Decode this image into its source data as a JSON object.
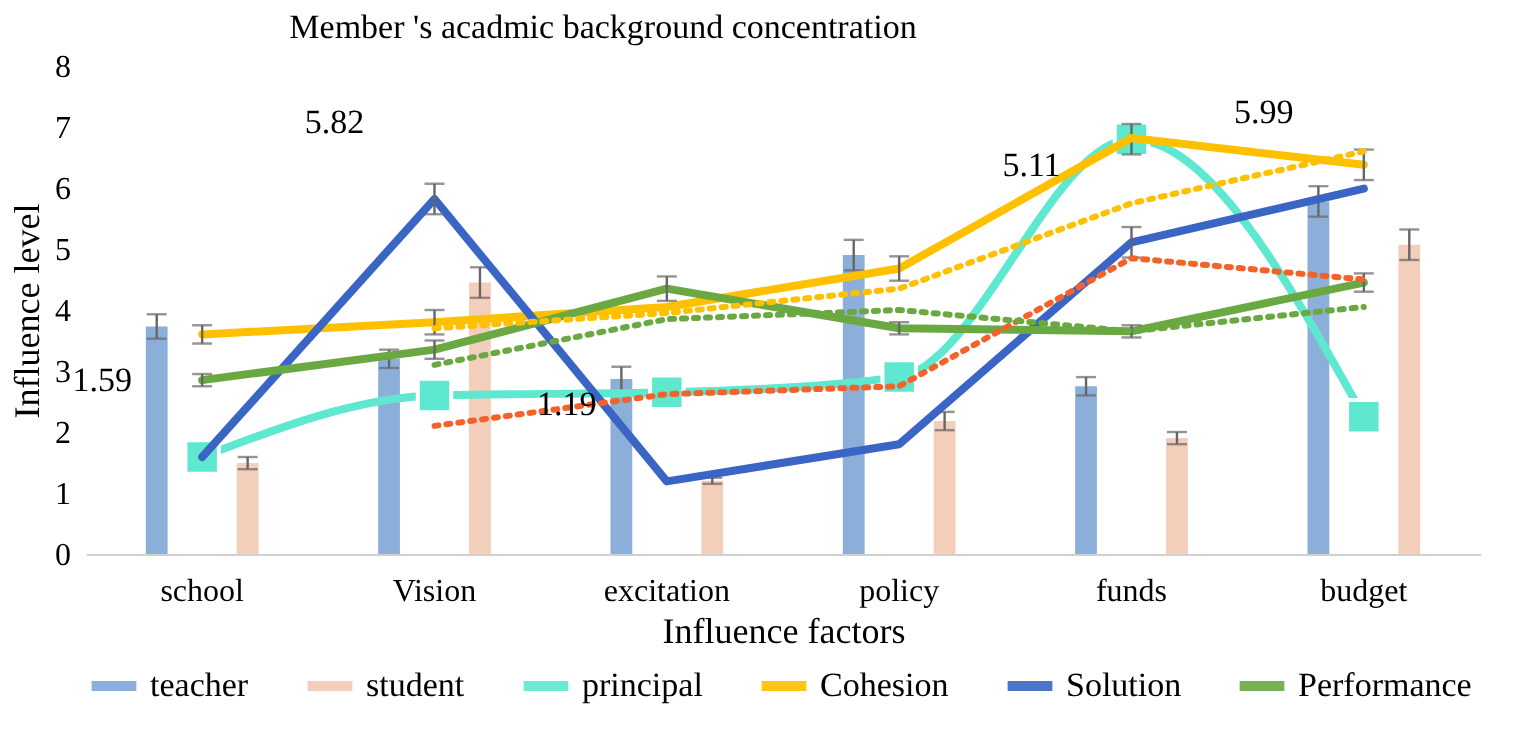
{
  "chart_data": {
    "type": "bar",
    "title": "Member 's acadmic background concentration",
    "xlabel": "Influence factors",
    "ylabel": "Influence level",
    "categories": [
      "school",
      "Vision",
      "excitation",
      "policy",
      "funds",
      "budget"
    ],
    "ylim": [
      0,
      8
    ],
    "yticks": [
      0,
      1,
      2,
      3,
      4,
      5,
      6,
      7,
      8
    ],
    "legend": "bottom",
    "series": [
      {
        "name": "teacher",
        "color": "#7fa6d6",
        "values": [
          3.73,
          3.2,
          2.87,
          4.9,
          2.75,
          5.78
        ],
        "errors": [
          0.2,
          0.15,
          0.2,
          0.25,
          0.15,
          0.25
        ]
      },
      {
        "name": "student",
        "color": "#f2c9b4",
        "values": [
          1.49,
          4.45,
          1.2,
          2.18,
          1.9,
          5.07
        ],
        "errors": [
          0.1,
          0.25,
          0.05,
          0.15,
          0.1,
          0.25
        ]
      },
      {
        "name": "principal",
        "type": "line",
        "color": "#5ee8d0",
        "marker": "square",
        "values": [
          1.59,
          2.6,
          2.65,
          2.9,
          6.8,
          2.25
        ],
        "errors": [
          null,
          null,
          null,
          null,
          0.25,
          null
        ]
      },
      {
        "name": "Cohesion",
        "type": "line",
        "color": "#ffc000",
        "values": [
          3.6,
          3.8,
          4.05,
          4.68,
          6.82,
          6.38
        ],
        "errors": [
          0.15,
          0.2,
          null,
          0.2,
          null,
          0.25
        ]
      },
      {
        "name": "Solution",
        "type": "line",
        "color": "#3a65c4",
        "values": [
          1.59,
          5.82,
          1.19,
          1.8,
          5.11,
          5.99
        ],
        "errors": [
          null,
          0.25,
          null,
          null,
          0.25,
          null
        ]
      },
      {
        "name": "Performance",
        "type": "line",
        "color": "#6aa842",
        "values": [
          2.85,
          3.35,
          4.35,
          3.7,
          3.65,
          4.45
        ],
        "errors": [
          0.1,
          0.15,
          0.2,
          0.1,
          0.1,
          0.15
        ]
      },
      {
        "type": "line",
        "color": "#f4622a",
        "line_style": "dotted",
        "values": [
          null,
          2.1,
          2.62,
          2.75,
          4.85,
          4.5
        ]
      },
      {
        "type": "line",
        "color": "#ffc000",
        "line_style": "dotted",
        "values": [
          null,
          3.7,
          3.95,
          4.35,
          5.75,
          6.6
        ]
      },
      {
        "type": "line",
        "color": "#6aa842",
        "line_style": "dotted",
        "values": [
          null,
          3.1,
          3.85,
          4.0,
          3.65,
          4.05
        ]
      }
    ],
    "annotations": [
      {
        "text": "1.59",
        "x": "school",
        "y": 1.59
      },
      {
        "text": "5.82",
        "x": "Vision",
        "y": 5.82
      },
      {
        "text": "1.19",
        "x": "excitation",
        "y": 1.19
      },
      {
        "text": "5.11",
        "x": "funds",
        "y": 5.11
      },
      {
        "text": "5.99",
        "x": "budget",
        "y": 5.99
      }
    ]
  }
}
